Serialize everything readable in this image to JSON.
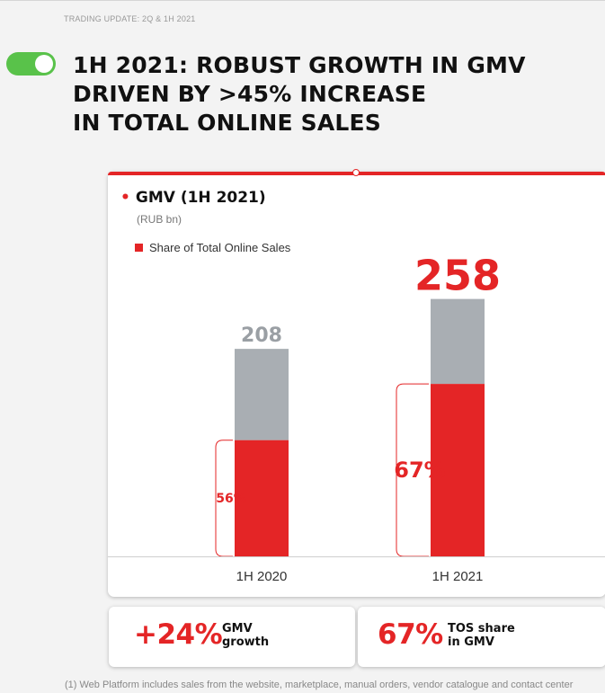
{
  "section_label": "TRADING UPDATE: 2Q & 1H 2021",
  "headline": {
    "line1": "1H 2021: ROBUST GROWTH IN GMV",
    "line2": "DRIVEN BY >45% INCREASE",
    "line3": "IN TOTAL ONLINE SALES"
  },
  "colors": {
    "accent": "#e42526",
    "gray_bar": "#a9aeb3",
    "toggle": "#59c24a"
  },
  "icons": {
    "toggle": "toggle-switch-on-icon"
  },
  "chart_data": {
    "type": "bar",
    "title": "GMV (1H 2021)",
    "subtitle": "(RUB bn)",
    "categories": [
      "1H 2020",
      "1H 2021"
    ],
    "values": [
      208,
      258
    ],
    "series": [
      {
        "name": "Share of Total Online Sales",
        "share_percent": [
          56,
          67
        ],
        "labels": [
          "56%",
          "67%"
        ]
      }
    ],
    "total_labels": [
      "208",
      "258"
    ],
    "stacked": true,
    "legend_position": "top-left",
    "grid": false,
    "ylim": [
      0,
      280
    ]
  },
  "stats": {
    "gmv_growth": {
      "value": "+24%",
      "label_line1": "GMV",
      "label_line2": "growth"
    },
    "tos_share": {
      "value": "67%",
      "label_line1": "TOS share",
      "label_line2": "in GMV"
    }
  },
  "footnote": "(1) Web Platform includes sales from the website, marketplace, manual orders, vendor catalogue and contact center"
}
